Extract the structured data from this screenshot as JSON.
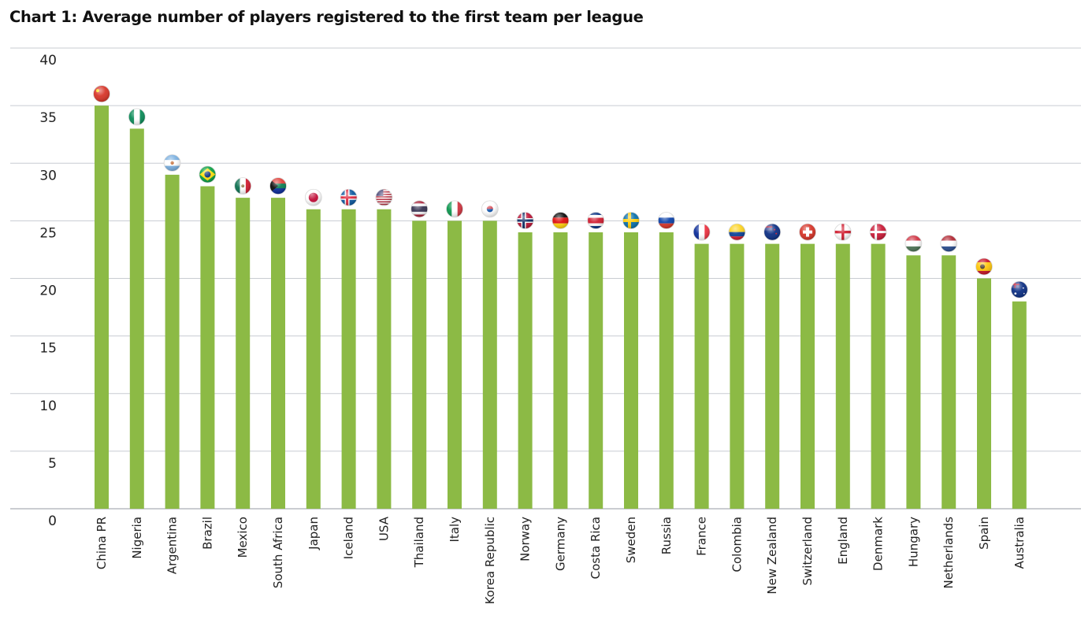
{
  "chart_data": {
    "type": "bar",
    "title": "Chart 1: Average number of players registered to the first team per league",
    "xlabel": "",
    "ylabel": "",
    "ylim": [
      0,
      40
    ],
    "yticks": [
      0,
      5,
      10,
      15,
      20,
      25,
      30,
      35,
      40
    ],
    "grid": true,
    "legend": "none",
    "bar_color": "#8cba45",
    "categories": [
      "China PR",
      "Nigeria",
      "Argentina",
      "Brazil",
      "Mexico",
      "South Africa",
      "Japan",
      "Iceland",
      "USA",
      "Thailand",
      "Italy",
      "Korea Republic",
      "Norway",
      "Germany",
      "Costa Rica",
      "Sweden",
      "Russia",
      "France",
      "Colombia",
      "New Zealand",
      "Switzerland",
      "England",
      "Denmark",
      "Hungary",
      "Netherlands",
      "Spain",
      "Australia"
    ],
    "values": [
      35,
      33,
      29,
      28,
      27,
      27,
      26,
      26,
      26,
      25,
      25,
      25,
      24,
      24,
      24,
      24,
      24,
      23,
      23,
      23,
      23,
      23,
      23,
      22,
      22,
      20,
      18
    ],
    "annotations": [
      "china-flag-icon",
      "nigeria-flag-icon",
      "argentina-flag-icon",
      "brazil-flag-icon",
      "mexico-flag-icon",
      "south-africa-flag-icon",
      "japan-flag-icon",
      "iceland-flag-icon",
      "usa-flag-icon",
      "thailand-flag-icon",
      "italy-flag-icon",
      "korea-flag-icon",
      "norway-flag-icon",
      "germany-flag-icon",
      "costa-rica-flag-icon",
      "sweden-flag-icon",
      "russia-flag-icon",
      "france-flag-icon",
      "colombia-flag-icon",
      "new-zealand-flag-icon",
      "switzerland-flag-icon",
      "england-flag-icon",
      "denmark-flag-icon",
      "hungary-flag-icon",
      "netherlands-flag-icon",
      "spain-flag-icon",
      "australia-flag-icon"
    ]
  }
}
